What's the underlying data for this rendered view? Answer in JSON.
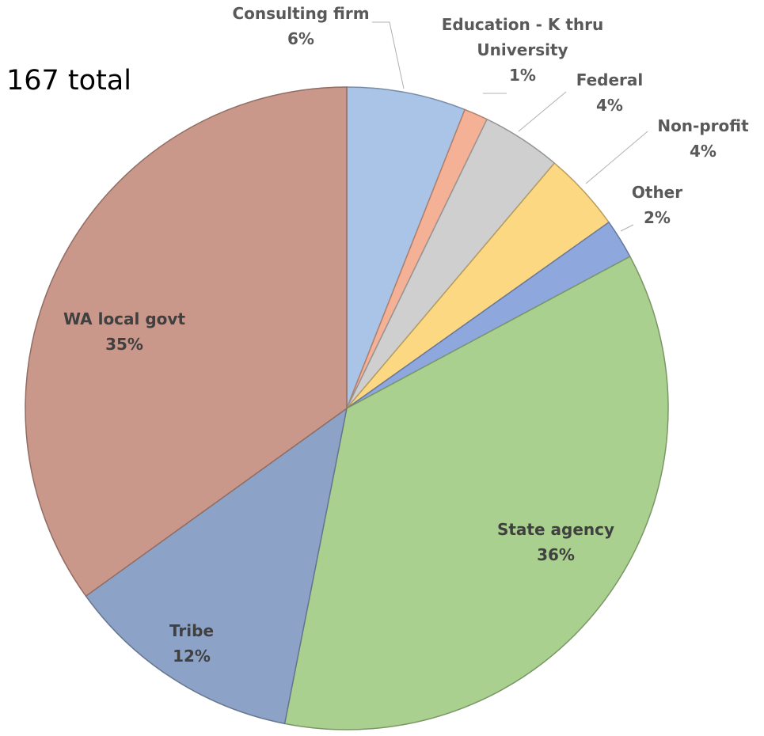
{
  "chart_data": {
    "type": "pie",
    "total_label": "167 total",
    "slices": [
      {
        "name": "Consulting firm",
        "value": 6,
        "value_label": "6%",
        "color": "#a9c4e6",
        "label_lines": [
          "Consulting firm",
          "6%"
        ]
      },
      {
        "name": "Education - K thru University",
        "value": 1.2,
        "value_label": "1%",
        "color": "#f5b195",
        "label_lines": [
          "Education - K thru",
          "University",
          "1%"
        ]
      },
      {
        "name": "Federal",
        "value": 4,
        "value_label": "4%",
        "color": "#cfcfcf",
        "label_lines": [
          "Federal",
          "4%"
        ]
      },
      {
        "name": "Non-profit",
        "value": 4,
        "value_label": "4%",
        "color": "#fdd883",
        "label_lines": [
          "Non-profit",
          "4%"
        ]
      },
      {
        "name": "Other",
        "value": 2,
        "value_label": "2%",
        "color": "#8ea7dd",
        "label_lines": [
          "Other",
          "2%"
        ]
      },
      {
        "name": "State agency",
        "value": 36,
        "value_label": "36%",
        "color": "#a9d08e",
        "label_lines": [
          "State agency",
          "36%"
        ]
      },
      {
        "name": "Tribe",
        "value": 12,
        "value_label": "12%",
        "color": "#8ca2c7",
        "label_lines": [
          "Tribe",
          "12%"
        ]
      },
      {
        "name": "WA local govt",
        "value": 35,
        "value_label": "35%",
        "color": "#c9988b",
        "label_lines": [
          "WA local govt",
          "35%"
        ]
      }
    ],
    "start_direction": "12 o'clock",
    "order": "clockwise"
  }
}
